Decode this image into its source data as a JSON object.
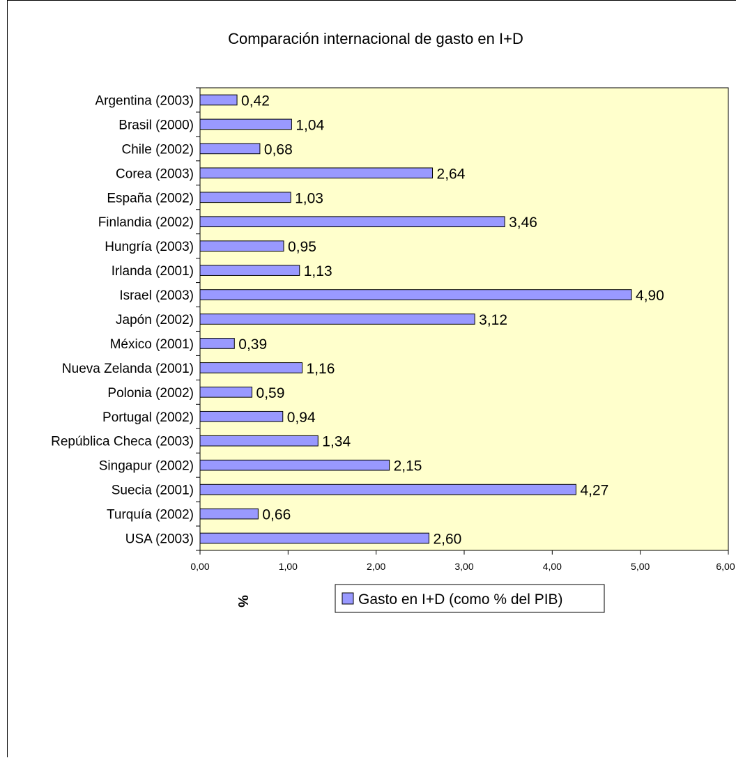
{
  "chart_data": {
    "type": "bar",
    "orientation": "horizontal",
    "title": "Comparación internacional de gasto en I+D",
    "xlabel": "%",
    "ylabel": "",
    "xlim": [
      0,
      6
    ],
    "x_ticks": [
      "0,00",
      "1,00",
      "2,00",
      "3,00",
      "4,00",
      "5,00",
      "6,00"
    ],
    "categories": [
      "Argentina (2003)",
      "Brasil (2000)",
      "Chile (2002)",
      "Corea (2003)",
      "España (2002)",
      "Finlandia (2002)",
      "Hungría (2003)",
      "Irlanda (2001)",
      "Israel (2003)",
      "Japón (2002)",
      "México (2001)",
      "Nueva Zelanda (2001)",
      "Polonia (2002)",
      "Portugal (2002)",
      "República Checa (2003)",
      "Singapur (2002)",
      "Suecia (2001)",
      "Turquía (2002)",
      "USA (2003)"
    ],
    "values": [
      0.42,
      1.04,
      0.68,
      2.64,
      1.03,
      3.46,
      0.95,
      1.13,
      4.9,
      3.12,
      0.39,
      1.16,
      0.59,
      0.94,
      1.34,
      2.15,
      4.27,
      0.66,
      2.6
    ],
    "value_labels": [
      "0,42",
      "1,04",
      "0,68",
      "2,64",
      "1,03",
      "3,46",
      "0,95",
      "1,13",
      "4,90",
      "3,12",
      "0,39",
      "1,16",
      "0,59",
      "0,94",
      "1,34",
      "2,15",
      "4,27",
      "0,66",
      "2,60"
    ],
    "series": [
      {
        "name": "Gasto en I+D (como % del PIB)"
      }
    ],
    "legend": "bottom",
    "grid": false,
    "colors": {
      "bar": "#9999ff",
      "plot_background": "#ffffcc",
      "border": "#000000"
    }
  }
}
